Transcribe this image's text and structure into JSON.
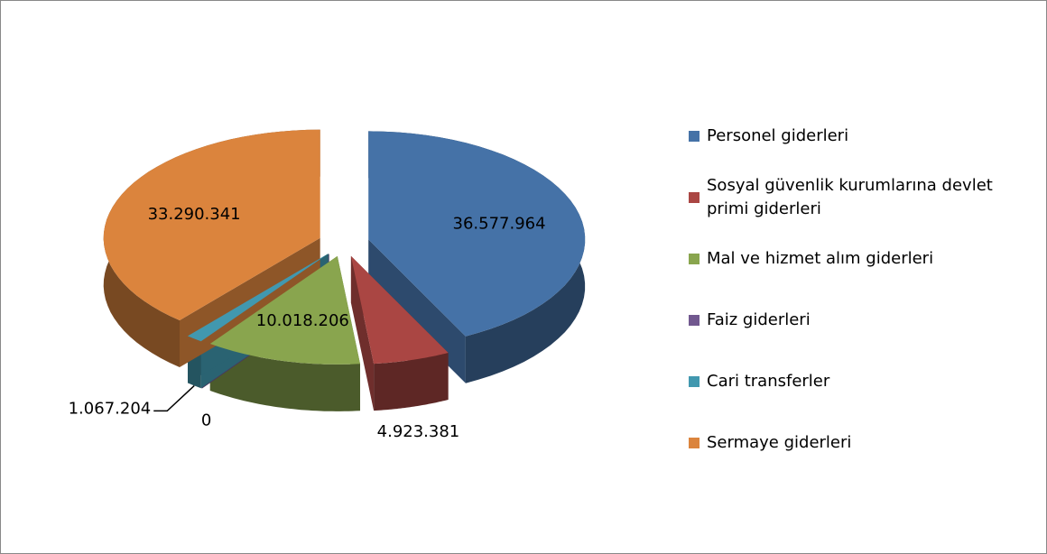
{
  "chart_data": {
    "type": "pie3d",
    "categories": [
      "Personel giderleri",
      "Sosyal güvenlik kurumlarına devlet primi giderleri",
      "Mal ve hizmet alım giderleri",
      "Faiz giderleri",
      "Cari transferler",
      "Sermaye giderleri"
    ],
    "values": [
      36577964,
      4923381,
      10018206,
      0,
      1067204,
      33290341
    ],
    "value_labels": [
      "36.577.964",
      "4.923.381",
      "10.018.206",
      "0",
      "1.067.204",
      "33.290.341"
    ],
    "colors": [
      "#4572a7",
      "#aa4643",
      "#89a54e",
      "#71588f",
      "#4198af",
      "#db843d"
    ],
    "legend": "right"
  }
}
